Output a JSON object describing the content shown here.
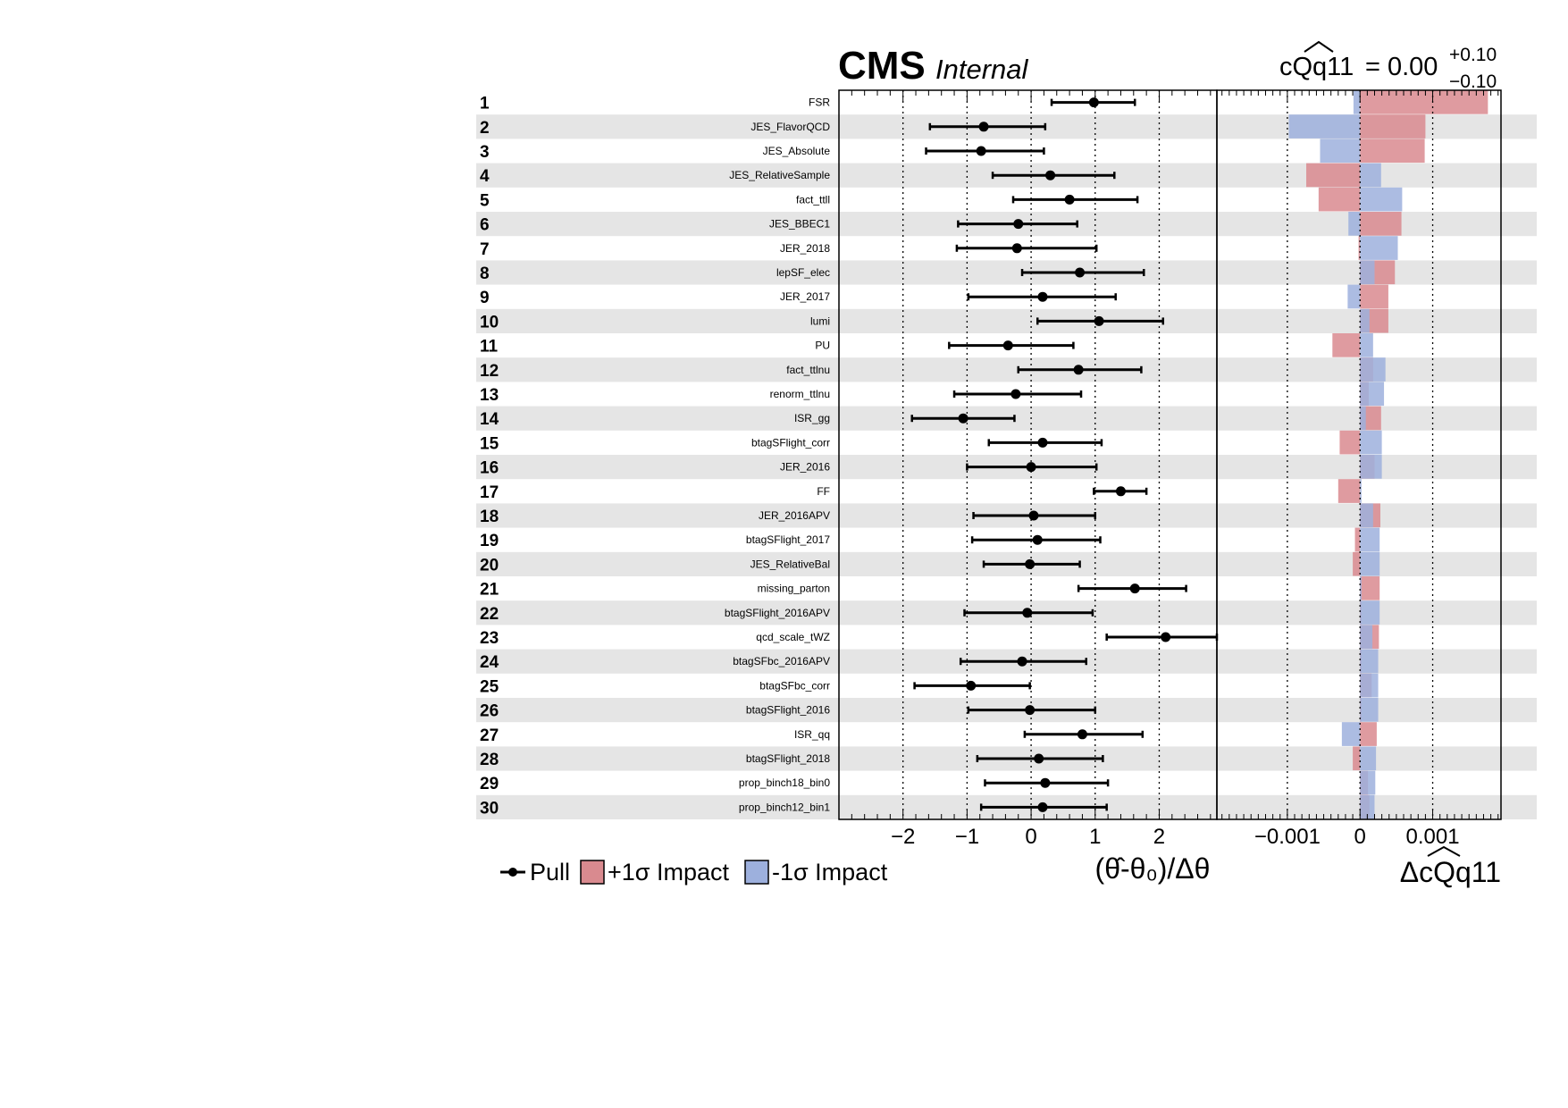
{
  "header": {
    "experiment": "CMS",
    "status": "Internal",
    "poi_name": "cQq11",
    "poi_value": "= 0.00",
    "poi_err_up": "+0.10",
    "poi_err_down": "−0.10"
  },
  "legend": {
    "pull": "Pull",
    "plus_impact": "+1σ Impact",
    "minus_impact": "-1σ Impact"
  },
  "colors": {
    "plus_impact": "#d98a8f",
    "minus_impact": "#9db0dd",
    "stripe": "#e5e5e5",
    "markers": "#000000"
  },
  "chart_data": {
    "type": "impact",
    "pull_axis": {
      "label": "(θ̂-θ₀)/Δθ",
      "range": [
        -3.0,
        2.9
      ],
      "ticks": [
        -2,
        -1,
        0,
        1,
        2
      ],
      "tick_labels": [
        "−2",
        "−1",
        "0",
        "1",
        "2"
      ],
      "dotted_gridlines": [
        -2,
        -1,
        0,
        1,
        2
      ]
    },
    "impact_axis": {
      "label": "ΔcQq11",
      "range": [
        -0.00197,
        0.00194
      ],
      "ticks": [
        -0.001,
        0,
        0.001
      ],
      "tick_labels": [
        "−0.001",
        "0",
        "0.001"
      ],
      "dotted_gridlines": [
        -0.001,
        0,
        0.001
      ]
    },
    "nuisances": [
      {
        "rank": "1",
        "name": "FSR",
        "pull": 0.98,
        "lo": 0.32,
        "hi": 1.62,
        "imp_plus": 0.00176,
        "imp_minus": -9e-05
      },
      {
        "rank": "2",
        "name": "JES_FlavorQCD",
        "pull": -0.74,
        "lo": -1.58,
        "hi": 0.22,
        "imp_plus": 0.0009,
        "imp_minus": -0.00098
      },
      {
        "rank": "3",
        "name": "JES_Absolute",
        "pull": -0.78,
        "lo": -1.64,
        "hi": 0.2,
        "imp_plus": 0.00089,
        "imp_minus": -0.00055
      },
      {
        "rank": "4",
        "name": "JES_RelativeSample",
        "pull": 0.3,
        "lo": -0.6,
        "hi": 1.3,
        "imp_plus": -0.00074,
        "imp_minus": 0.00029
      },
      {
        "rank": "5",
        "name": "fact_ttll",
        "pull": 0.6,
        "lo": -0.28,
        "hi": 1.66,
        "imp_plus": -0.00057,
        "imp_minus": 0.00058
      },
      {
        "rank": "6",
        "name": "JES_BBEC1",
        "pull": -0.2,
        "lo": -1.14,
        "hi": 0.72,
        "imp_plus": 0.00057,
        "imp_minus": -0.00016
      },
      {
        "rank": "7",
        "name": "JER_2018",
        "pull": -0.22,
        "lo": -1.16,
        "hi": 1.02,
        "imp_plus": -2e-05,
        "imp_minus": 0.00052
      },
      {
        "rank": "8",
        "name": "lepSF_elec",
        "pull": 0.76,
        "lo": -0.14,
        "hi": 1.76,
        "imp_plus": 0.00048,
        "imp_minus": 0.0002
      },
      {
        "rank": "9",
        "name": "JER_2017",
        "pull": 0.18,
        "lo": -0.98,
        "hi": 1.32,
        "imp_plus": 0.00039,
        "imp_minus": -0.00017
      },
      {
        "rank": "10",
        "name": "lumi",
        "pull": 1.06,
        "lo": 0.1,
        "hi": 2.06,
        "imp_plus": 0.00039,
        "imp_minus": 0.00013
      },
      {
        "rank": "11",
        "name": "PU",
        "pull": -0.36,
        "lo": -1.28,
        "hi": 0.66,
        "imp_plus": -0.00038,
        "imp_minus": 0.00018
      },
      {
        "rank": "12",
        "name": "fact_ttlnu",
        "pull": 0.74,
        "lo": -0.2,
        "hi": 1.72,
        "imp_plus": 0.00018,
        "imp_minus": 0.00035
      },
      {
        "rank": "13",
        "name": "renorm_ttlnu",
        "pull": -0.24,
        "lo": -1.2,
        "hi": 0.78,
        "imp_plus": 0.00012,
        "imp_minus": 0.00033
      },
      {
        "rank": "14",
        "name": "ISR_gg",
        "pull": -1.06,
        "lo": -1.86,
        "hi": -0.26,
        "imp_plus": 0.00029,
        "imp_minus": 8e-05
      },
      {
        "rank": "15",
        "name": "btagSFlight_corr",
        "pull": 0.18,
        "lo": -0.66,
        "hi": 1.1,
        "imp_plus": -0.00028,
        "imp_minus": 0.0003
      },
      {
        "rank": "16",
        "name": "JER_2016",
        "pull": 0.0,
        "lo": -1.0,
        "hi": 1.02,
        "imp_plus": 0.0002,
        "imp_minus": 0.0003
      },
      {
        "rank": "17",
        "name": "FF",
        "pull": 1.4,
        "lo": 0.98,
        "hi": 1.8,
        "imp_plus": -0.0003,
        "imp_minus": 2e-05
      },
      {
        "rank": "18",
        "name": "JER_2016APV",
        "pull": 0.04,
        "lo": -0.9,
        "hi": 1.0,
        "imp_plus": 0.00028,
        "imp_minus": 0.00018
      },
      {
        "rank": "19",
        "name": "btagSFlight_2017",
        "pull": 0.1,
        "lo": -0.92,
        "hi": 1.08,
        "imp_plus": -7e-05,
        "imp_minus": 0.00027
      },
      {
        "rank": "20",
        "name": "JES_RelativeBal",
        "pull": -0.02,
        "lo": -0.74,
        "hi": 0.76,
        "imp_plus": -0.0001,
        "imp_minus": 0.00027
      },
      {
        "rank": "21",
        "name": "missing_parton",
        "pull": 1.62,
        "lo": 0.74,
        "hi": 2.42,
        "imp_plus": 0.00027,
        "imp_minus": 2e-05
      },
      {
        "rank": "22",
        "name": "btagSFlight_2016APV",
        "pull": -0.06,
        "lo": -1.04,
        "hi": 0.96,
        "imp_plus": 2e-05,
        "imp_minus": 0.00027
      },
      {
        "rank": "23",
        "name": "qcd_scale_tWZ",
        "pull": 2.1,
        "lo": 1.18,
        "hi": 2.9,
        "imp_plus": 0.00026,
        "imp_minus": 0.00017
      },
      {
        "rank": "24",
        "name": "btagSFbc_2016APV",
        "pull": -0.14,
        "lo": -1.1,
        "hi": 0.86,
        "imp_plus": 2e-05,
        "imp_minus": 0.00025
      },
      {
        "rank": "25",
        "name": "btagSFbc_corr",
        "pull": -0.94,
        "lo": -1.82,
        "hi": -0.02,
        "imp_plus": 0.00016,
        "imp_minus": 0.00025
      },
      {
        "rank": "26",
        "name": "btagSFlight_2016",
        "pull": -0.02,
        "lo": -0.98,
        "hi": 1.0,
        "imp_plus": 2e-05,
        "imp_minus": 0.00025
      },
      {
        "rank": "27",
        "name": "ISR_qq",
        "pull": 0.8,
        "lo": -0.1,
        "hi": 1.74,
        "imp_plus": 0.00023,
        "imp_minus": -0.00025
      },
      {
        "rank": "28",
        "name": "btagSFlight_2018",
        "pull": 0.12,
        "lo": -0.84,
        "hi": 1.12,
        "imp_plus": -0.0001,
        "imp_minus": 0.00022
      },
      {
        "rank": "29",
        "name": "prop_binch18_bin0",
        "pull": 0.22,
        "lo": -0.72,
        "hi": 1.2,
        "imp_plus": 0.00011,
        "imp_minus": 0.00021
      },
      {
        "rank": "30",
        "name": "prop_binch12_bin1",
        "pull": 0.18,
        "lo": -0.78,
        "hi": 1.18,
        "imp_plus": 0.00013,
        "imp_minus": 0.0002
      }
    ]
  }
}
